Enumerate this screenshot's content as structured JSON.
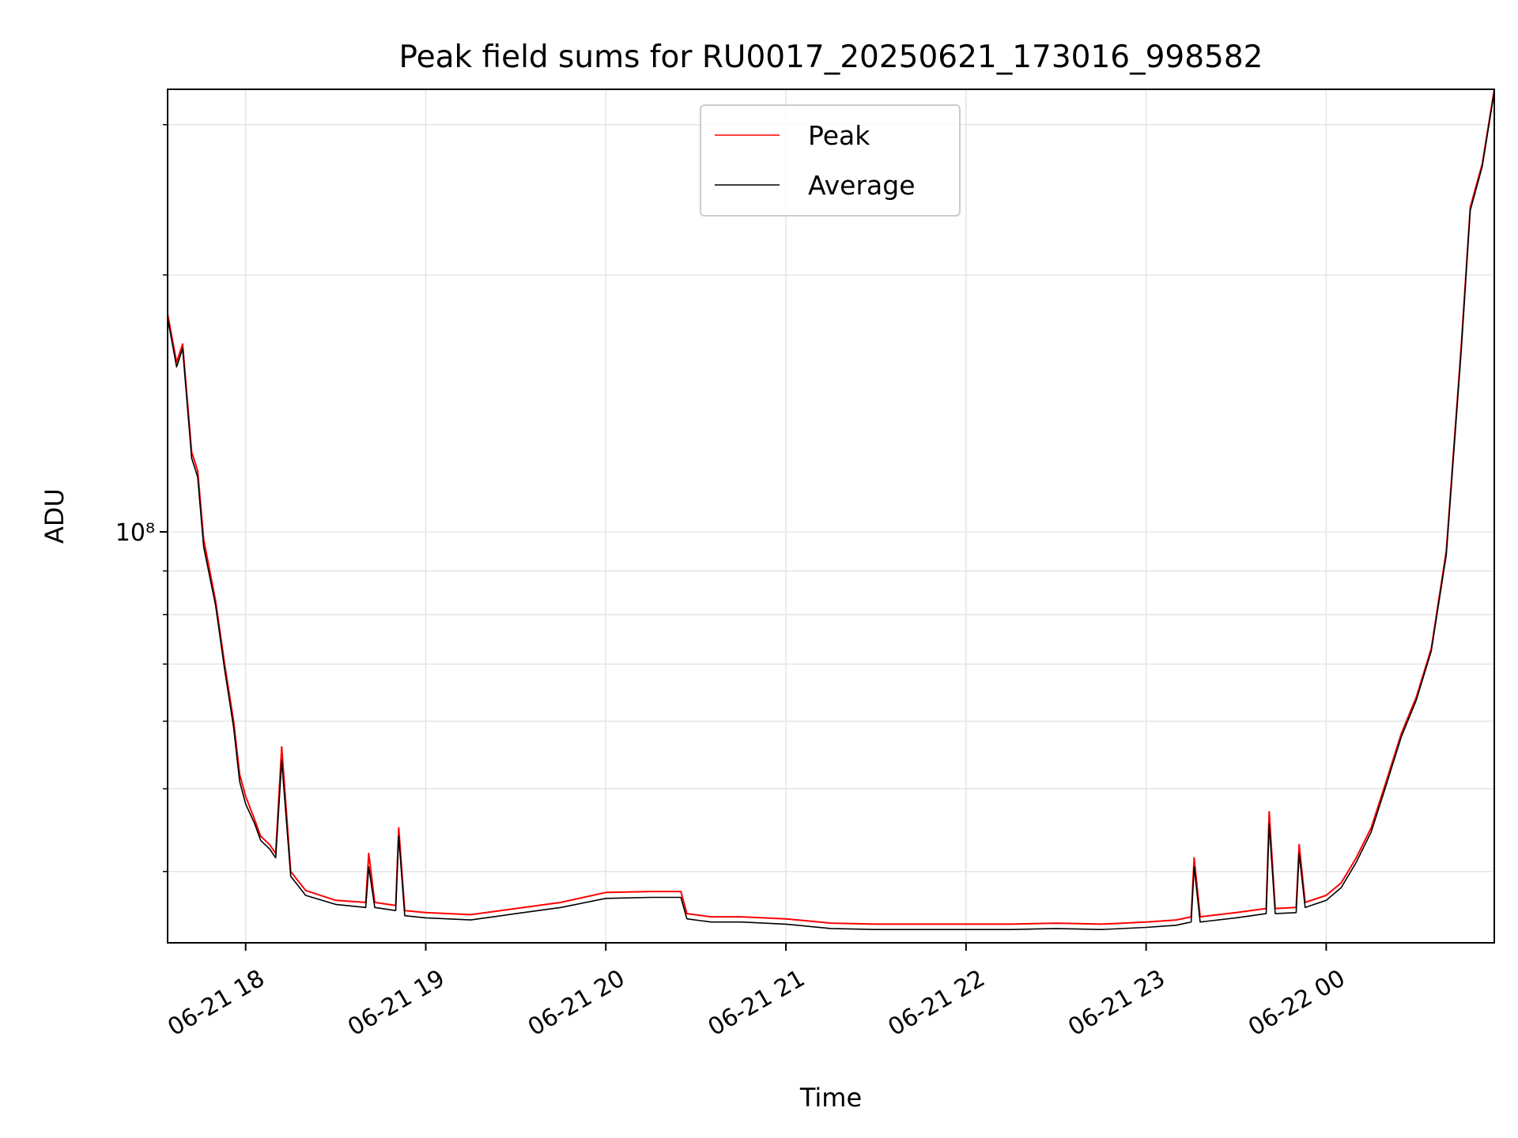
{
  "chart_data": {
    "type": "line",
    "title": "Peak field sums for RU0017_20250621_173016_998582",
    "xlabel": "Time",
    "ylabel": "ADU",
    "yscale": "log",
    "xlim": [
      "2025-06-21 17:34",
      "2025-06-22 00:56"
    ],
    "ylim": [
      33000000,
      330000000
    ],
    "y_tick_label": "10⁸",
    "x_tick_labels": [
      "06-21 18",
      "06-21 19",
      "06-21 20",
      "06-21 21",
      "06-21 22",
      "06-21 23",
      "06-22 00"
    ],
    "grid": true,
    "legend_position": "upper center",
    "series": [
      {
        "name": "Peak",
        "color": "#ff0000",
        "x": [
          "17:34",
          "17:37",
          "17:39",
          "17:42",
          "17:44",
          "17:46",
          "17:50",
          "17:53",
          "17:56",
          "17:58",
          "18:00",
          "18:03",
          "18:05",
          "18:08",
          "18:10",
          "18:12",
          "18:15",
          "18:20",
          "18:30",
          "18:40",
          "18:41",
          "18:43",
          "18:50",
          "18:51",
          "18:53",
          "19:00",
          "19:15",
          "19:30",
          "19:45",
          "20:00",
          "20:15",
          "20:25",
          "20:27",
          "20:35",
          "20:45",
          "21:00",
          "21:15",
          "21:30",
          "21:45",
          "22:00",
          "22:15",
          "22:30",
          "22:45",
          "23:00",
          "23:10",
          "23:15",
          "23:16",
          "23:18",
          "23:30",
          "23:40",
          "23:41",
          "23:43",
          "23:50",
          "23:51",
          "23:53",
          "24:00",
          "24:05",
          "24:10",
          "24:15",
          "24:20",
          "24:25",
          "24:30",
          "24:35",
          "24:40",
          "24:45",
          "24:48",
          "24:52",
          "24:56"
        ],
        "values": [
          180000000,
          158000000,
          166000000,
          124000000,
          118000000,
          98000000,
          83000000,
          70000000,
          60000000,
          52000000,
          49000000,
          46000000,
          44000000,
          43000000,
          42000000,
          56000000,
          40000000,
          38000000,
          37000000,
          36800000,
          42000000,
          36800000,
          36500000,
          45000000,
          36000000,
          35800000,
          35600000,
          36200000,
          36800000,
          37800000,
          37900000,
          37900000,
          35700000,
          35400000,
          35400000,
          35200000,
          34800000,
          34700000,
          34700000,
          34700000,
          34700000,
          34800000,
          34700000,
          34900000,
          35100000,
          35400000,
          41500000,
          35400000,
          35800000,
          36200000,
          47000000,
          36200000,
          36300000,
          43000000,
          36800000,
          37500000,
          38800000,
          41500000,
          45000000,
          51000000,
          58000000,
          64000000,
          73000000,
          95000000,
          165000000,
          240000000,
          270000000,
          330000000
        ]
      },
      {
        "name": "Average",
        "color": "#000000",
        "x": [
          "17:34",
          "17:37",
          "17:39",
          "17:42",
          "17:44",
          "17:46",
          "17:50",
          "17:53",
          "17:56",
          "17:58",
          "18:00",
          "18:03",
          "18:05",
          "18:08",
          "18:10",
          "18:12",
          "18:15",
          "18:20",
          "18:30",
          "18:40",
          "18:41",
          "18:43",
          "18:50",
          "18:51",
          "18:53",
          "19:00",
          "19:15",
          "19:30",
          "19:45",
          "20:00",
          "20:15",
          "20:25",
          "20:27",
          "20:35",
          "20:45",
          "21:00",
          "21:15",
          "21:30",
          "21:45",
          "22:00",
          "22:15",
          "22:30",
          "22:45",
          "23:00",
          "23:10",
          "23:15",
          "23:16",
          "23:18",
          "23:30",
          "23:40",
          "23:41",
          "23:43",
          "23:50",
          "23:51",
          "23:53",
          "24:00",
          "24:05",
          "24:10",
          "24:15",
          "24:20",
          "24:25",
          "24:30",
          "24:35",
          "24:40",
          "24:45",
          "24:48",
          "24:52",
          "24:56"
        ],
        "values": [
          178000000,
          156000000,
          164000000,
          122000000,
          116000000,
          96000000,
          82000000,
          69000000,
          59000000,
          51000000,
          48000000,
          45500000,
          43500000,
          42500000,
          41500000,
          54000000,
          39500000,
          37500000,
          36600000,
          36300000,
          40500000,
          36300000,
          36000000,
          44000000,
          35500000,
          35300000,
          35100000,
          35700000,
          36300000,
          37200000,
          37300000,
          37300000,
          35200000,
          34900000,
          34900000,
          34700000,
          34300000,
          34200000,
          34200000,
          34200000,
          34200000,
          34300000,
          34200000,
          34400000,
          34600000,
          34900000,
          40500000,
          34900000,
          35300000,
          35700000,
          45500000,
          35700000,
          35800000,
          42000000,
          36300000,
          37000000,
          38300000,
          41000000,
          44500000,
          50500000,
          57500000,
          63500000,
          72500000,
          94000000,
          163000000,
          238000000,
          268000000,
          328000000
        ]
      }
    ]
  }
}
